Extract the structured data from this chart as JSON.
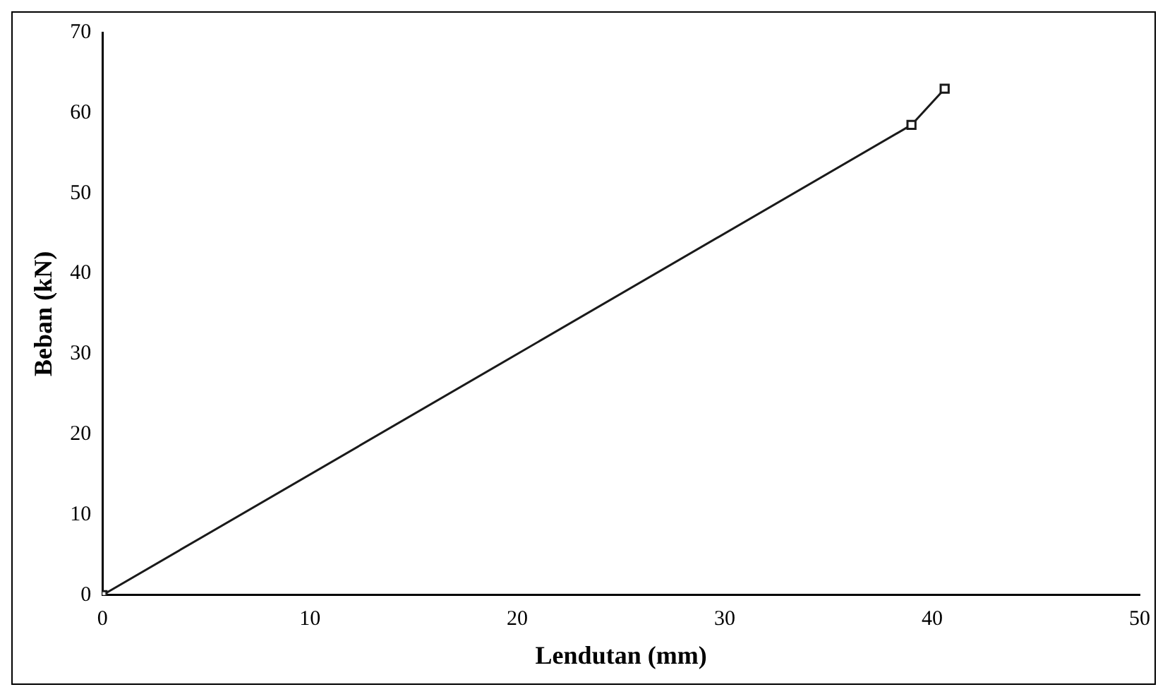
{
  "chart_data": {
    "type": "line",
    "xlabel": "Lendutan (mm)",
    "ylabel": "Beban (kN)",
    "x": [
      0,
      39,
      40.6
    ],
    "series": [
      {
        "color": "#1a1a1a",
        "values": [
          0,
          58.5,
          63
        ]
      }
    ],
    "xlim": [
      0,
      50
    ],
    "xticks": [
      0,
      10,
      20,
      30,
      40,
      50
    ],
    "ylim": [
      0,
      70
    ],
    "yticks": [
      0,
      10,
      20,
      30,
      40,
      50,
      60,
      70
    ],
    "grid": false,
    "legend": false,
    "marker": "square",
    "line_style": "solid"
  }
}
